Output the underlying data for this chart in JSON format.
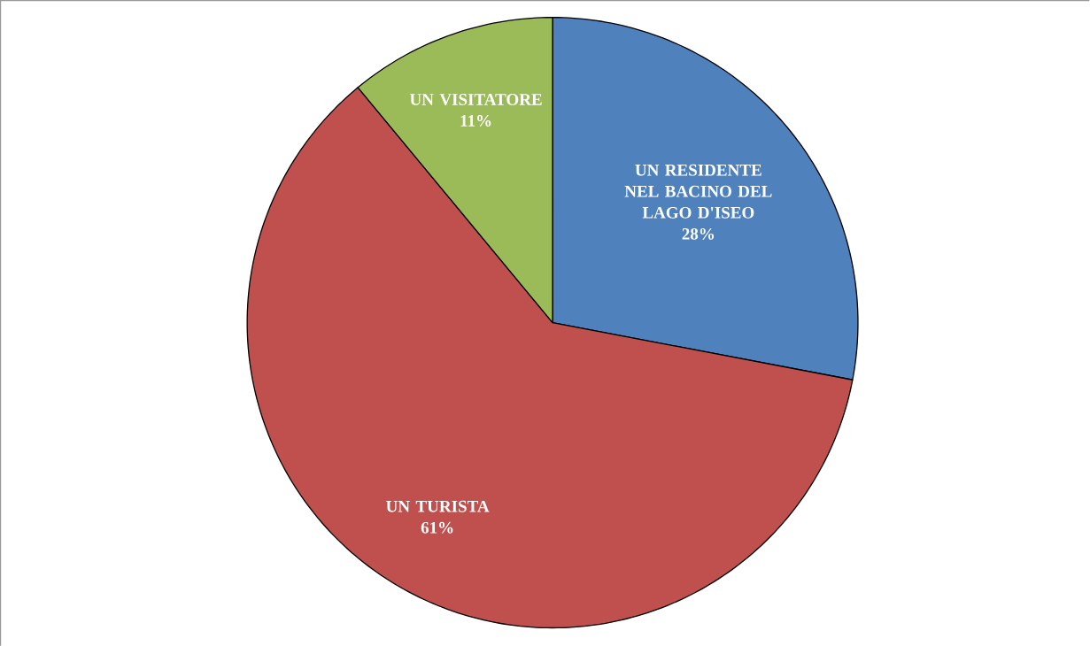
{
  "chart_data": {
    "type": "pie",
    "categories": [
      "UN RESIDENTE NEL BACINO DEL LAGO D'ISEO",
      "UN TURISTA",
      "UN VISITATORE"
    ],
    "values": [
      28,
      61,
      11
    ],
    "colors": [
      "#4f81bd",
      "#c0504d",
      "#9bbb59"
    ],
    "value_labels": [
      "28%",
      "61%",
      "11%"
    ]
  }
}
